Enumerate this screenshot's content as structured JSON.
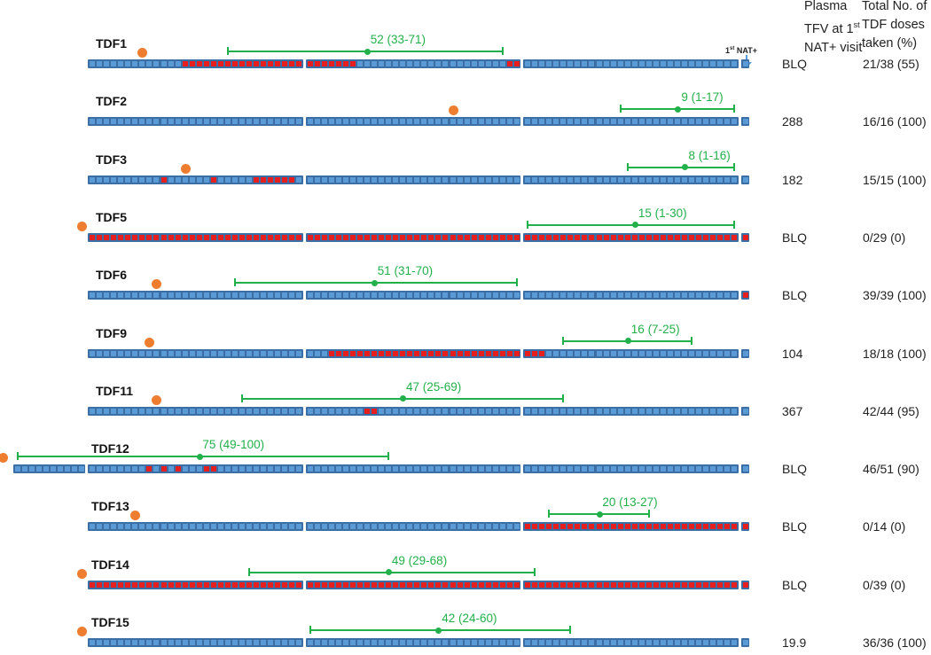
{
  "header": {
    "tfv": [
      "Plasma",
      "TFV at 1",
      "st",
      "NAT+ visit"
    ],
    "doses": [
      "Total No. of",
      "TDF doses",
      "taken (%)"
    ],
    "nat_marker": {
      "sup": "st",
      "pre": "1",
      "post": " NAT+"
    }
  },
  "colors": {
    "adherent": "#5b9bd5",
    "missed": "#e61e1e",
    "interval": "#22b04b",
    "dot": "#ef7d2f"
  },
  "chart_data": {
    "type": "timeline",
    "days_per_row": 91,
    "rows": [
      {
        "id": "TDF1",
        "missed": [
          [
            13,
            29
          ],
          [
            30,
            36
          ],
          [
            58,
            59
          ]
        ],
        "dot_day": 83,
        "interval": {
          "label": "52 (33-71)",
          "est": 52,
          "lo": 33,
          "hi": 71
        },
        "tfv": "BLQ",
        "doses": "21/38 (55)"
      },
      {
        "id": "TDF2",
        "missed": [],
        "dot_day": 40,
        "interval": {
          "label": "9 (1-17)",
          "est": 9,
          "lo": 1,
          "hi": 17
        },
        "tfv": "288",
        "doses": "16/16 (100)"
      },
      {
        "id": "TDF3",
        "missed": [
          [
            10,
            10
          ],
          [
            17,
            17
          ],
          [
            23,
            28
          ]
        ],
        "dot_day": 77,
        "interval": {
          "label": "8 (1-16)",
          "est": 8,
          "lo": 1,
          "hi": 16
        },
        "tfv": "182",
        "doses": "15/15 (100)"
      },
      {
        "id": "TDF5",
        "missed": [
          [
            0,
            90
          ]
        ],
        "dot_day": 91,
        "interval": {
          "label": "15 (1-30)",
          "est": 15,
          "lo": 1,
          "hi": 30
        },
        "tfv": "BLQ",
        "doses": "0/29 (0)"
      },
      {
        "id": "TDF6",
        "missed": [
          [
            90,
            90
          ]
        ],
        "dot_day": 81,
        "interval": {
          "label": "51 (31-70)",
          "est": 51,
          "lo": 31,
          "hi": 70
        },
        "tfv": "BLQ",
        "doses": "39/39 (100)"
      },
      {
        "id": "TDF9",
        "missed": [
          [
            33,
            59
          ],
          [
            60,
            62
          ]
        ],
        "dot_day": 82,
        "interval": {
          "label": "16 (7-25)",
          "est": 16,
          "lo": 7,
          "hi": 25
        },
        "tfv": "104",
        "doses": "18/18 (100)"
      },
      {
        "id": "TDF11",
        "missed": [
          [
            38,
            39
          ]
        ],
        "dot_day": 81,
        "interval": {
          "label": "47 (25-69)",
          "est": 47,
          "lo": 25,
          "hi": 69
        },
        "tfv": "367",
        "doses": "42/44 (95)"
      },
      {
        "id": "TDF12",
        "extra_pre_days": 10,
        "missed": [
          [
            8,
            8
          ],
          [
            10,
            10
          ],
          [
            12,
            12
          ],
          [
            16,
            17
          ]
        ],
        "dot_day": 102,
        "interval": {
          "label": "75 (49-100)",
          "est": 75,
          "lo": 49,
          "hi": 100
        },
        "tfv": "BLQ",
        "doses": "46/51 (90)"
      },
      {
        "id": "TDF13",
        "missed": [
          [
            60,
            90
          ]
        ],
        "dot_day": 84,
        "interval": {
          "label": "20 (13-27)",
          "est": 20,
          "lo": 13,
          "hi": 27
        },
        "tfv": "BLQ",
        "doses": "0/14 (0)"
      },
      {
        "id": "TDF14",
        "missed": [
          [
            0,
            90
          ]
        ],
        "dot_day": 91,
        "interval": {
          "label": "49 (29-68)",
          "est": 49,
          "lo": 29,
          "hi": 68
        },
        "tfv": "BLQ",
        "doses": "0/39 (0)"
      },
      {
        "id": "TDF15",
        "missed": [],
        "dot_day": 91,
        "interval": {
          "label": "42 (24-60)",
          "est": 42,
          "lo": 24,
          "hi": 60
        },
        "tfv": "19.9",
        "doses": "36/36 (100)"
      }
    ]
  }
}
